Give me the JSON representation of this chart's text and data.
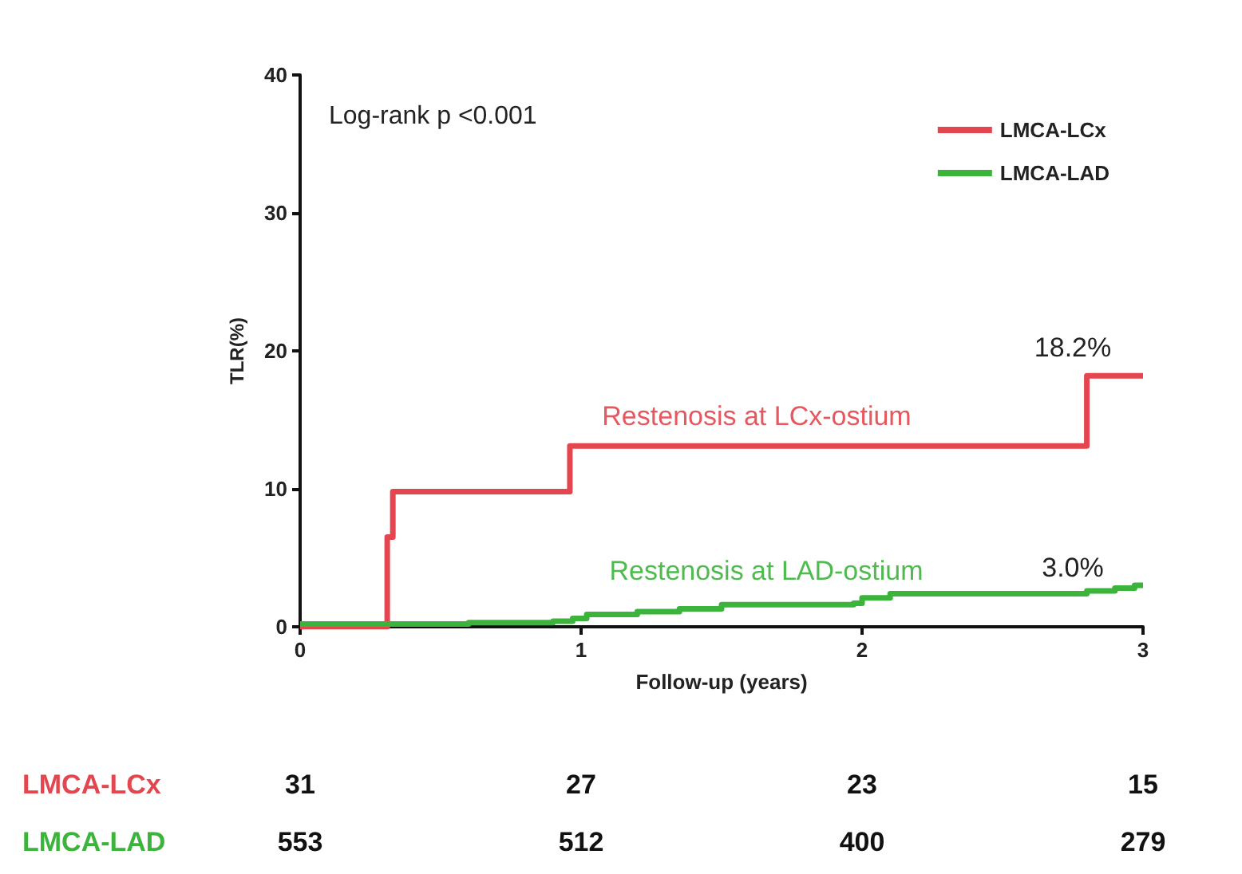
{
  "chart_data": {
    "type": "step",
    "xlabel": "Follow-up (years)",
    "ylabel": "TLR(%)",
    "xlim": [
      0,
      3
    ],
    "xticks": [
      0,
      1,
      2,
      3
    ],
    "ylim": [
      0,
      40
    ],
    "yticks": [
      0,
      10,
      20,
      30,
      40
    ],
    "grid": false,
    "legend": "top right",
    "marker": "none",
    "line_style": "solid",
    "series": [
      {
        "name": "LMCA-LCx",
        "color": "#e3464e",
        "x": [
          0,
          0.3,
          0.31,
          0.33,
          0.96,
          2.8,
          3
        ],
        "values": [
          0,
          0,
          6.5,
          9.8,
          13.1,
          18.2,
          18.2
        ]
      },
      {
        "name": "LMCA-LAD",
        "color": "#3cb43c",
        "x": [
          0,
          0.6,
          0.9,
          0.97,
          1.02,
          1.2,
          1.35,
          1.5,
          1.97,
          2.0,
          2.1,
          2.8,
          2.9,
          2.97,
          3
        ],
        "values": [
          0.2,
          0.3,
          0.4,
          0.6,
          0.9,
          1.1,
          1.3,
          1.6,
          1.7,
          2.1,
          2.4,
          2.6,
          2.8,
          3.0,
          3.0
        ]
      }
    ],
    "annotations": [
      "Log-rank p <0.001",
      "Restenosis at LCx-ostium",
      "18.2%",
      "Restenosis at LAD-ostium",
      "3.0%",
      "31",
      "27",
      "23",
      "15",
      "553",
      "512",
      "400",
      "279"
    ]
  }
}
